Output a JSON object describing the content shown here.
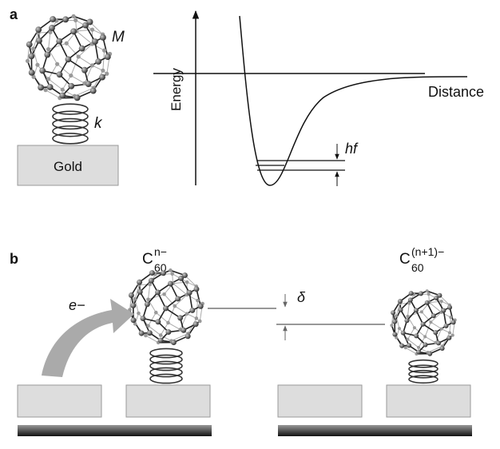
{
  "panel_a": {
    "label": "a",
    "molecule_label": "M",
    "spring_label": "k",
    "substrate": "Gold",
    "y_axis_label": "Energy",
    "x_axis_label": "Distance",
    "level_spacing_label": "hf"
  },
  "panel_b": {
    "label": "b",
    "left_molecule": {
      "symbol": "C",
      "subscript": "60",
      "superscript": "n−"
    },
    "electron_label": "e−",
    "shift_label": "δ",
    "right_molecule": {
      "symbol": "C",
      "subscript": "60",
      "superscript": "(n+1)−"
    }
  }
}
